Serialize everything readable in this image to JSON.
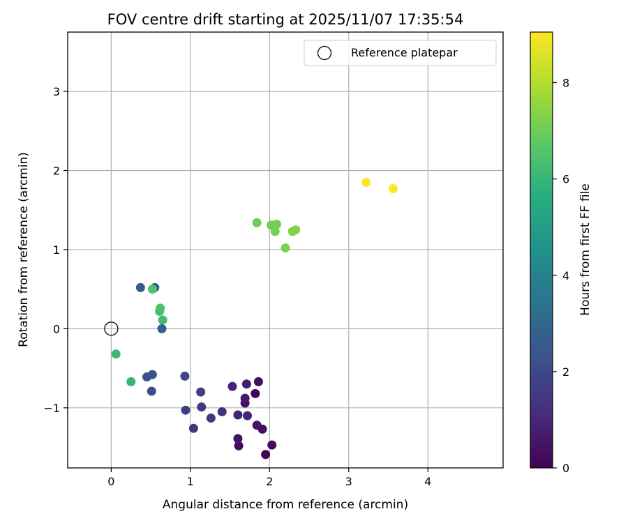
{
  "chart_data": {
    "type": "scatter",
    "title": "FOV centre drift starting at 2025/11/07 17:35:54",
    "xlabel": "Angular distance from reference (arcmin)",
    "ylabel": "Rotation from reference (arcmin)",
    "xlim": [
      -0.55,
      4.95
    ],
    "ylim": [
      -1.76,
      3.75
    ],
    "xticks": [
      0,
      1,
      2,
      3,
      4
    ],
    "yticks": [
      -1,
      0,
      1,
      2,
      3
    ],
    "xtick_labels": [
      "0",
      "1",
      "2",
      "3",
      "4"
    ],
    "ytick_labels": [
      "−1",
      "0",
      "1",
      "2",
      "3"
    ],
    "grid": true,
    "legend": {
      "label": "Reference platepar",
      "placement": "top-right",
      "marker": "open-circle"
    },
    "reference": {
      "x": 0,
      "y": 0
    },
    "colormap": "viridis",
    "colorbar": {
      "label": "Hours from first FF file",
      "range": [
        0,
        9.05
      ],
      "ticks": [
        0,
        2,
        4,
        6,
        8
      ],
      "tick_labels": [
        "0",
        "2",
        "4",
        "6",
        "8"
      ]
    },
    "points": [
      {
        "x": 1.95,
        "y": -1.59,
        "c": 0.1
      },
      {
        "x": 2.03,
        "y": -1.47,
        "c": 0.2
      },
      {
        "x": 1.61,
        "y": -1.48,
        "c": 0.25
      },
      {
        "x": 1.6,
        "y": -1.39,
        "c": 0.45
      },
      {
        "x": 1.91,
        "y": -1.27,
        "c": 0.35
      },
      {
        "x": 1.84,
        "y": -1.22,
        "c": 0.5
      },
      {
        "x": 1.6,
        "y": -1.09,
        "c": 0.85
      },
      {
        "x": 1.72,
        "y": -1.1,
        "c": 0.95
      },
      {
        "x": 1.69,
        "y": -0.94,
        "c": 0.4
      },
      {
        "x": 1.69,
        "y": -0.88,
        "c": 0.6
      },
      {
        "x": 1.82,
        "y": -0.82,
        "c": 0.05
      },
      {
        "x": 1.86,
        "y": -0.67,
        "c": 0.3
      },
      {
        "x": 1.71,
        "y": -0.7,
        "c": 0.7
      },
      {
        "x": 1.53,
        "y": -0.73,
        "c": 0.9
      },
      {
        "x": 1.4,
        "y": -1.05,
        "c": 1.2
      },
      {
        "x": 1.26,
        "y": -1.13,
        "c": 1.4
      },
      {
        "x": 1.14,
        "y": -0.99,
        "c": 1.5
      },
      {
        "x": 1.13,
        "y": -0.8,
        "c": 1.6
      },
      {
        "x": 1.04,
        "y": -1.26,
        "c": 1.35
      },
      {
        "x": 0.94,
        "y": -1.03,
        "c": 1.75
      },
      {
        "x": 0.93,
        "y": -0.6,
        "c": 1.85
      },
      {
        "x": 0.51,
        "y": -0.79,
        "c": 2.1
      },
      {
        "x": 0.45,
        "y": -0.61,
        "c": 2.2
      },
      {
        "x": 0.52,
        "y": -0.58,
        "c": 2.35
      },
      {
        "x": 0.37,
        "y": 0.52,
        "c": 2.5
      },
      {
        "x": 0.55,
        "y": 0.52,
        "c": 2.65
      },
      {
        "x": 0.64,
        "y": 0.0,
        "c": 2.8
      },
      {
        "x": 0.25,
        "y": -0.67,
        "c": 6.0
      },
      {
        "x": 0.06,
        "y": -0.32,
        "c": 6.1
      },
      {
        "x": 0.65,
        "y": 0.11,
        "c": 6.2
      },
      {
        "x": 0.61,
        "y": 0.22,
        "c": 6.3
      },
      {
        "x": 0.62,
        "y": 0.26,
        "c": 6.45
      },
      {
        "x": 0.52,
        "y": 0.5,
        "c": 6.55
      },
      {
        "x": 1.84,
        "y": 1.34,
        "c": 7.0
      },
      {
        "x": 2.02,
        "y": 1.31,
        "c": 7.05
      },
      {
        "x": 2.09,
        "y": 1.32,
        "c": 7.1
      },
      {
        "x": 2.07,
        "y": 1.23,
        "c": 7.15
      },
      {
        "x": 2.2,
        "y": 1.02,
        "c": 7.2
      },
      {
        "x": 2.29,
        "y": 1.23,
        "c": 7.3
      },
      {
        "x": 2.33,
        "y": 1.25,
        "c": 7.35
      },
      {
        "x": 3.22,
        "y": 1.85,
        "c": 9.0
      },
      {
        "x": 3.56,
        "y": 1.77,
        "c": 9.05
      }
    ]
  }
}
